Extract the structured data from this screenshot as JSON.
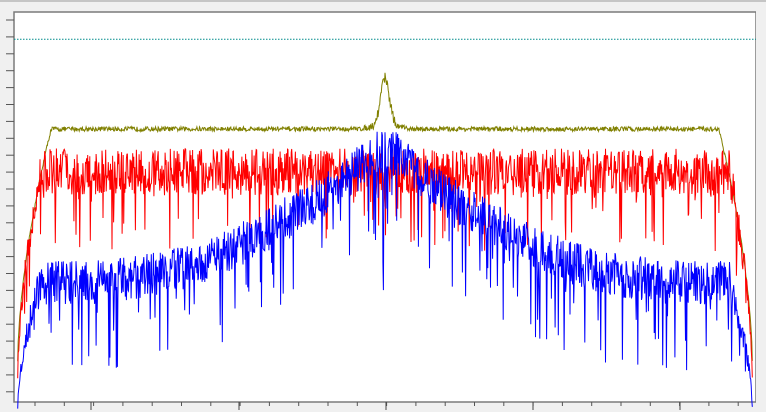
{
  "chart_data": {
    "type": "line",
    "title": "",
    "xlabel": "",
    "ylabel": "",
    "grid": false,
    "legend": "none",
    "x_range": [
      0,
      1
    ],
    "y_range": [
      0,
      1
    ],
    "reference_line": {
      "y": 0.93,
      "color": "#008b8b",
      "style": "dotted"
    },
    "series": [
      {
        "color": "#808000",
        "plateau": 0.7,
        "noise_amplitude": 0.012,
        "center_peak": 0.12,
        "x_start": 0.005,
        "x_end": 0.995,
        "rolloff": 0.045
      },
      {
        "color": "#ff0000",
        "plateau": 0.63,
        "noise_amplitude": 0.12,
        "x_start": 0.005,
        "x_end": 0.995,
        "rolloff": 0.03
      },
      {
        "color": "#0000ff",
        "edge_level": 0.32,
        "center_level": 0.58,
        "noise_amplitude": 0.16,
        "center_dip": 0.3,
        "x_start": 0.005,
        "x_end": 0.995,
        "rolloff": 0.03
      }
    ]
  }
}
